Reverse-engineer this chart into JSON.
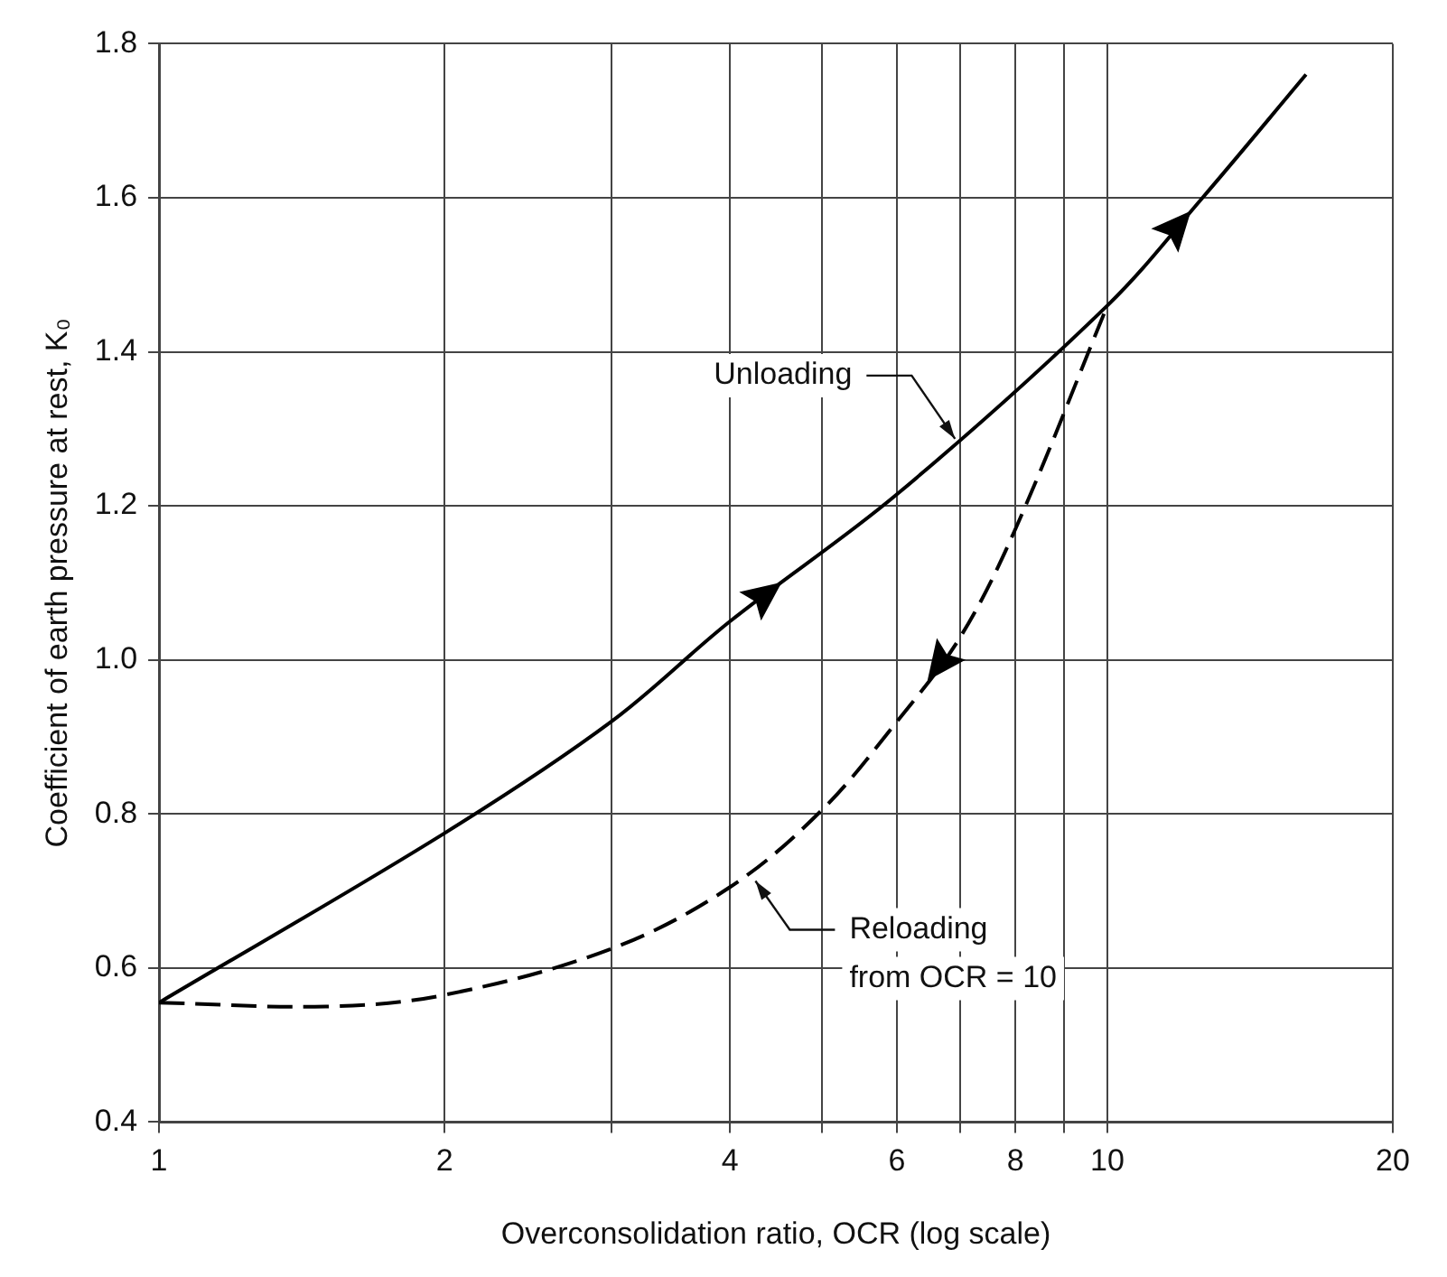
{
  "chart_data": {
    "type": "line",
    "xlabel": "Overconsolidation ratio, OCR (log scale)",
    "ylabel": "Coefficient of earth pressure at rest, K₀",
    "log": "x",
    "grid": true,
    "legend": false,
    "marker": "none",
    "xlim": [
      1,
      20
    ],
    "xticks": [
      1,
      2,
      {
        "value": 3,
        "label": null
      },
      4,
      {
        "value": 5,
        "label": null
      },
      6,
      {
        "value": 7,
        "label": null
      },
      8,
      {
        "value": 9,
        "label": null
      },
      10,
      20
    ],
    "ylim": [
      0.4,
      1.8
    ],
    "yticks": [
      0.4,
      0.6,
      0.8,
      {
        "value": 1,
        "label": "1.0"
      },
      1.2,
      1.4,
      1.6,
      1.8
    ],
    "series": [
      {
        "color": "#000000",
        "line_style": "solid",
        "x": [
          1,
          2,
          3,
          4,
          6,
          10,
          12.6,
          16.2
        ],
        "values": [
          0.555,
          0.775,
          0.92,
          1.05,
          1.215,
          1.46,
          1.6,
          1.76
        ]
      },
      {
        "color": "#000000",
        "line_style": "dashed",
        "x": [
          1,
          1.5,
          2,
          3,
          4,
          5,
          6,
          7,
          8,
          10
        ],
        "values": [
          0.555,
          0.55,
          0.565,
          0.625,
          0.705,
          0.805,
          0.92,
          1.03,
          1.17,
          1.46
        ]
      }
    ],
    "annotations": [
      {
        "text": "Unloading",
        "x": 7,
        "y": 1.28
      },
      {
        "text": "Reloading\nfrom OCR = 10",
        "x": 4.2,
        "y": 0.72
      }
    ]
  }
}
